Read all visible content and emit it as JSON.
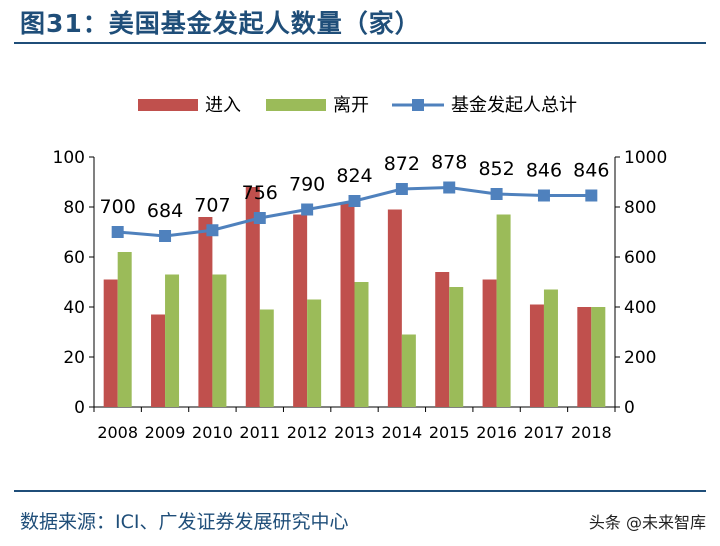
{
  "title": "图31：美国基金发起人数量（家）",
  "source": "数据来源：ICI、广发证券发展研究中心",
  "watermark": "头条 @未来智库",
  "colors": {
    "entry": "#c0504d",
    "exit": "#9bbb59",
    "total": "#4f81bd",
    "frame": "#1f4e79"
  },
  "chart_data": {
    "type": "bar+line",
    "categories": [
      "2008",
      "2009",
      "2010",
      "2011",
      "2012",
      "2013",
      "2014",
      "2015",
      "2016",
      "2017",
      "2018"
    ],
    "series": [
      {
        "name": "进入",
        "type": "bar",
        "axis": "left",
        "values": [
          51,
          37,
          76,
          88,
          77,
          82,
          79,
          54,
          51,
          41,
          40
        ]
      },
      {
        "name": "离开",
        "type": "bar",
        "axis": "left",
        "values": [
          62,
          53,
          53,
          39,
          43,
          50,
          29,
          48,
          77,
          47,
          40
        ]
      },
      {
        "name": "基金发起人总计",
        "type": "line",
        "axis": "right",
        "values": [
          700,
          684,
          707,
          756,
          790,
          824,
          872,
          878,
          852,
          846,
          846
        ],
        "labels": [
          "700",
          "684",
          "707",
          "756",
          "790",
          "824",
          "872",
          "878",
          "852",
          "846",
          "846"
        ]
      }
    ],
    "yleft": {
      "min": 0,
      "max": 100,
      "ticks": [
        "0",
        "20",
        "40",
        "60",
        "80",
        "100"
      ]
    },
    "yright": {
      "min": 0,
      "max": 1000,
      "ticks": [
        "0",
        "200",
        "400",
        "600",
        "800",
        "1000"
      ]
    },
    "legend": "top"
  }
}
